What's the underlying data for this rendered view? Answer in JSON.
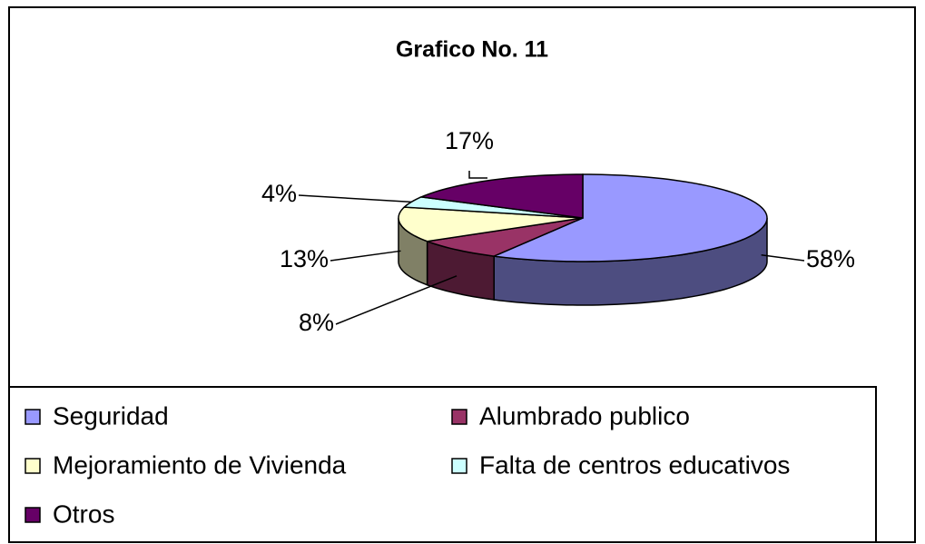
{
  "chart_data": {
    "type": "pie",
    "title": "Grafico No. 11",
    "categories": [
      "Seguridad",
      "Alumbrado publico",
      "Mejoramiento de Vivienda",
      "Falta de centros educativos",
      "Otros"
    ],
    "values": [
      58,
      8,
      13,
      4,
      17
    ],
    "value_labels": [
      "58%",
      "8%",
      "13%",
      "4%",
      "17%"
    ],
    "colors": [
      "#9999ff",
      "#993366",
      "#ffffcc",
      "#ccffff",
      "#660066"
    ],
    "legend": "bottom"
  }
}
